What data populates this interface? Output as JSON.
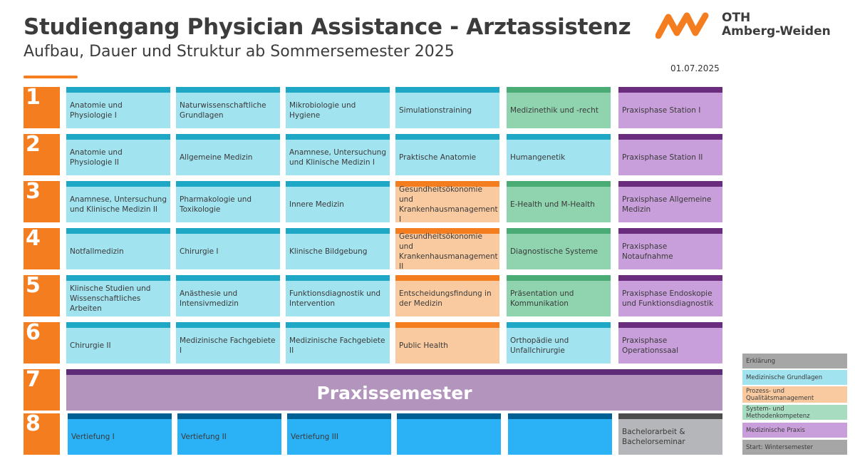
{
  "header": {
    "title": "Studiengang Physician Assistance - Arztassistenz",
    "subtitle": "Aufbau, Dauer und Struktur ab Sommersemester 2025",
    "logo_line1": "OTH",
    "logo_line2": "Amberg-Weiden",
    "date": "01.07.2025"
  },
  "semesters": [
    {
      "number": "1",
      "modules": [
        {
          "label": "Anatomie und Physiologie I",
          "category": "grund"
        },
        {
          "label": "Naturwissenschaftliche Grundlagen",
          "category": "grund"
        },
        {
          "label": "Mikrobiologie und Hygiene",
          "category": "grund"
        },
        {
          "label": "Simulationstraining",
          "category": "grund"
        },
        {
          "label": "Medizinethik und -recht",
          "category": "system"
        },
        {
          "label": "Praxisphase Station I",
          "category": "praxis"
        }
      ]
    },
    {
      "number": "2",
      "modules": [
        {
          "label": "Anatomie und Physiologie II",
          "category": "grund"
        },
        {
          "label": "Allgemeine Medizin",
          "category": "grund"
        },
        {
          "label": "Anamnese, Untersuchung und Klinische Medizin I",
          "category": "grund"
        },
        {
          "label": "Praktische Anatomie",
          "category": "grund"
        },
        {
          "label": "Humangenetik",
          "category": "grund"
        },
        {
          "label": "Praxisphase Station II",
          "category": "praxis"
        }
      ]
    },
    {
      "number": "3",
      "modules": [
        {
          "label": "Anamnese, Untersuchung und Klinische Medizin II",
          "category": "grund"
        },
        {
          "label": "Pharmakologie und Toxikologie",
          "category": "grund"
        },
        {
          "label": "Innere Medizin",
          "category": "grund"
        },
        {
          "label": "Gesundheitsökonomie und Krankenhausmanagement I",
          "category": "prozess"
        },
        {
          "label": "E-Health und M-Health",
          "category": "system"
        },
        {
          "label": "Praxisphase Allgemeine Medizin",
          "category": "praxis"
        }
      ]
    },
    {
      "number": "4",
      "modules": [
        {
          "label": "Notfallmedizin",
          "category": "grund"
        },
        {
          "label": "Chirurgie I",
          "category": "grund"
        },
        {
          "label": "Klinische Bildgebung",
          "category": "grund"
        },
        {
          "label": "Gesundheitsökonomie und Krankenhausmanagement II",
          "category": "prozess"
        },
        {
          "label": "Diagnostische Systeme",
          "category": "system"
        },
        {
          "label": "Praxisphase Notaufnahme",
          "category": "praxis"
        }
      ]
    },
    {
      "number": "5",
      "modules": [
        {
          "label": "Klinische Studien und Wissenschaftliches Arbeiten",
          "category": "grund"
        },
        {
          "label": "Anästhesie und Intensivmedizin",
          "category": "grund"
        },
        {
          "label": "Funktionsdiagnostik und Intervention",
          "category": "grund"
        },
        {
          "label": "Entscheidungsfindung in der Medizin",
          "category": "prozess"
        },
        {
          "label": "Präsentation und Kommunikation",
          "category": "system"
        },
        {
          "label": "Praxisphase Endoskopie und Funktionsdiagnostik",
          "category": "praxis"
        }
      ]
    },
    {
      "number": "6",
      "modules": [
        {
          "label": "Chirurgie II",
          "category": "grund"
        },
        {
          "label": "Medizinische Fachgebiete I",
          "category": "grund"
        },
        {
          "label": "Medizinische Fachgebiete II",
          "category": "grund"
        },
        {
          "label": "Public Health",
          "category": "prozess"
        },
        {
          "label": "Orthopädie und Unfallchirurgie",
          "category": "grund"
        },
        {
          "label": "Praxisphase Operationssaal",
          "category": "praxis"
        }
      ]
    },
    {
      "number": "7",
      "modules": []
    },
    {
      "number": "8",
      "modules": [
        {
          "label": "Vertiefung I",
          "category": "vert"
        },
        {
          "label": "Vertiefung II",
          "category": "vert"
        },
        {
          "label": "Vertiefung III",
          "category": "vert"
        },
        {
          "label": "",
          "category": "vert"
        },
        {
          "label": "",
          "category": "vert"
        },
        {
          "label": "Bachelorarbeit & Bachelorseminar",
          "category": "bach"
        }
      ]
    }
  ],
  "praxissemester": "Praxissemester",
  "legend": {
    "title": "Erklärung",
    "items": [
      {
        "label": "Medizinische Grundlagen",
        "color": "#a2e3f0"
      },
      {
        "label": "Prozess- und Qualitätsmanagement",
        "color": "#f9caa0"
      },
      {
        "label": "System- und Methodenkompetenz",
        "color": "#a8dcc0"
      },
      {
        "label": "Medizinische Praxis",
        "color": "#c99fdb"
      }
    ],
    "start": "Start: Wintersemester"
  },
  "colors": {
    "accent": "#f47d20",
    "text": "#3c3c3c"
  }
}
